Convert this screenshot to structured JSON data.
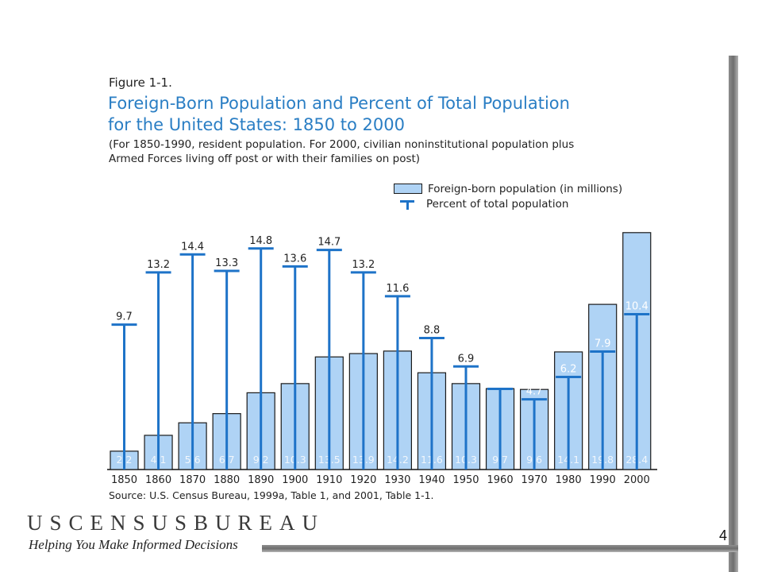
{
  "figure_label": "Figure 1-1.",
  "title_line1": "Foreign-Born Population and Percent of Total Population",
  "title_line2": "for the United States: 1850 to 2000",
  "subtitle_line1": "(For 1850-1990, resident population. For 2000, civilian noninstitutional population plus",
  "subtitle_line2": "Armed Forces living off post or with their families on post)",
  "legend": {
    "bar_label": "Foreign-born population (in millions)",
    "percent_label": "Percent of total population"
  },
  "source": "Source: U.S. Census Bureau, 1999a, Table 1, and 2001, Table 1-1.",
  "logo_text": "USCENSUSBUREAU",
  "tagline": "Helping You Make Informed Decisions",
  "page_number": "4",
  "chart_data": {
    "type": "bar",
    "categories": [
      "1850",
      "1860",
      "1870",
      "1880",
      "1890",
      "1900",
      "1910",
      "1920",
      "1930",
      "1940",
      "1950",
      "1960",
      "1970",
      "1980",
      "1990",
      "2000"
    ],
    "series": [
      {
        "name": "Foreign-born population (in millions)",
        "type": "bar",
        "values": [
          2.2,
          4.1,
          5.6,
          6.7,
          9.2,
          10.3,
          13.5,
          13.9,
          14.2,
          11.6,
          10.3,
          9.7,
          9.6,
          14.1,
          19.8,
          28.4
        ],
        "color": "#afd3f5"
      },
      {
        "name": "Percent of total population",
        "type": "t-marker",
        "values": [
          9.7,
          13.2,
          14.4,
          13.3,
          14.8,
          13.6,
          14.7,
          13.2,
          11.6,
          8.8,
          6.9,
          5.4,
          4.7,
          6.2,
          7.9,
          10.4
        ],
        "color": "#1e73c8"
      }
    ]
  }
}
